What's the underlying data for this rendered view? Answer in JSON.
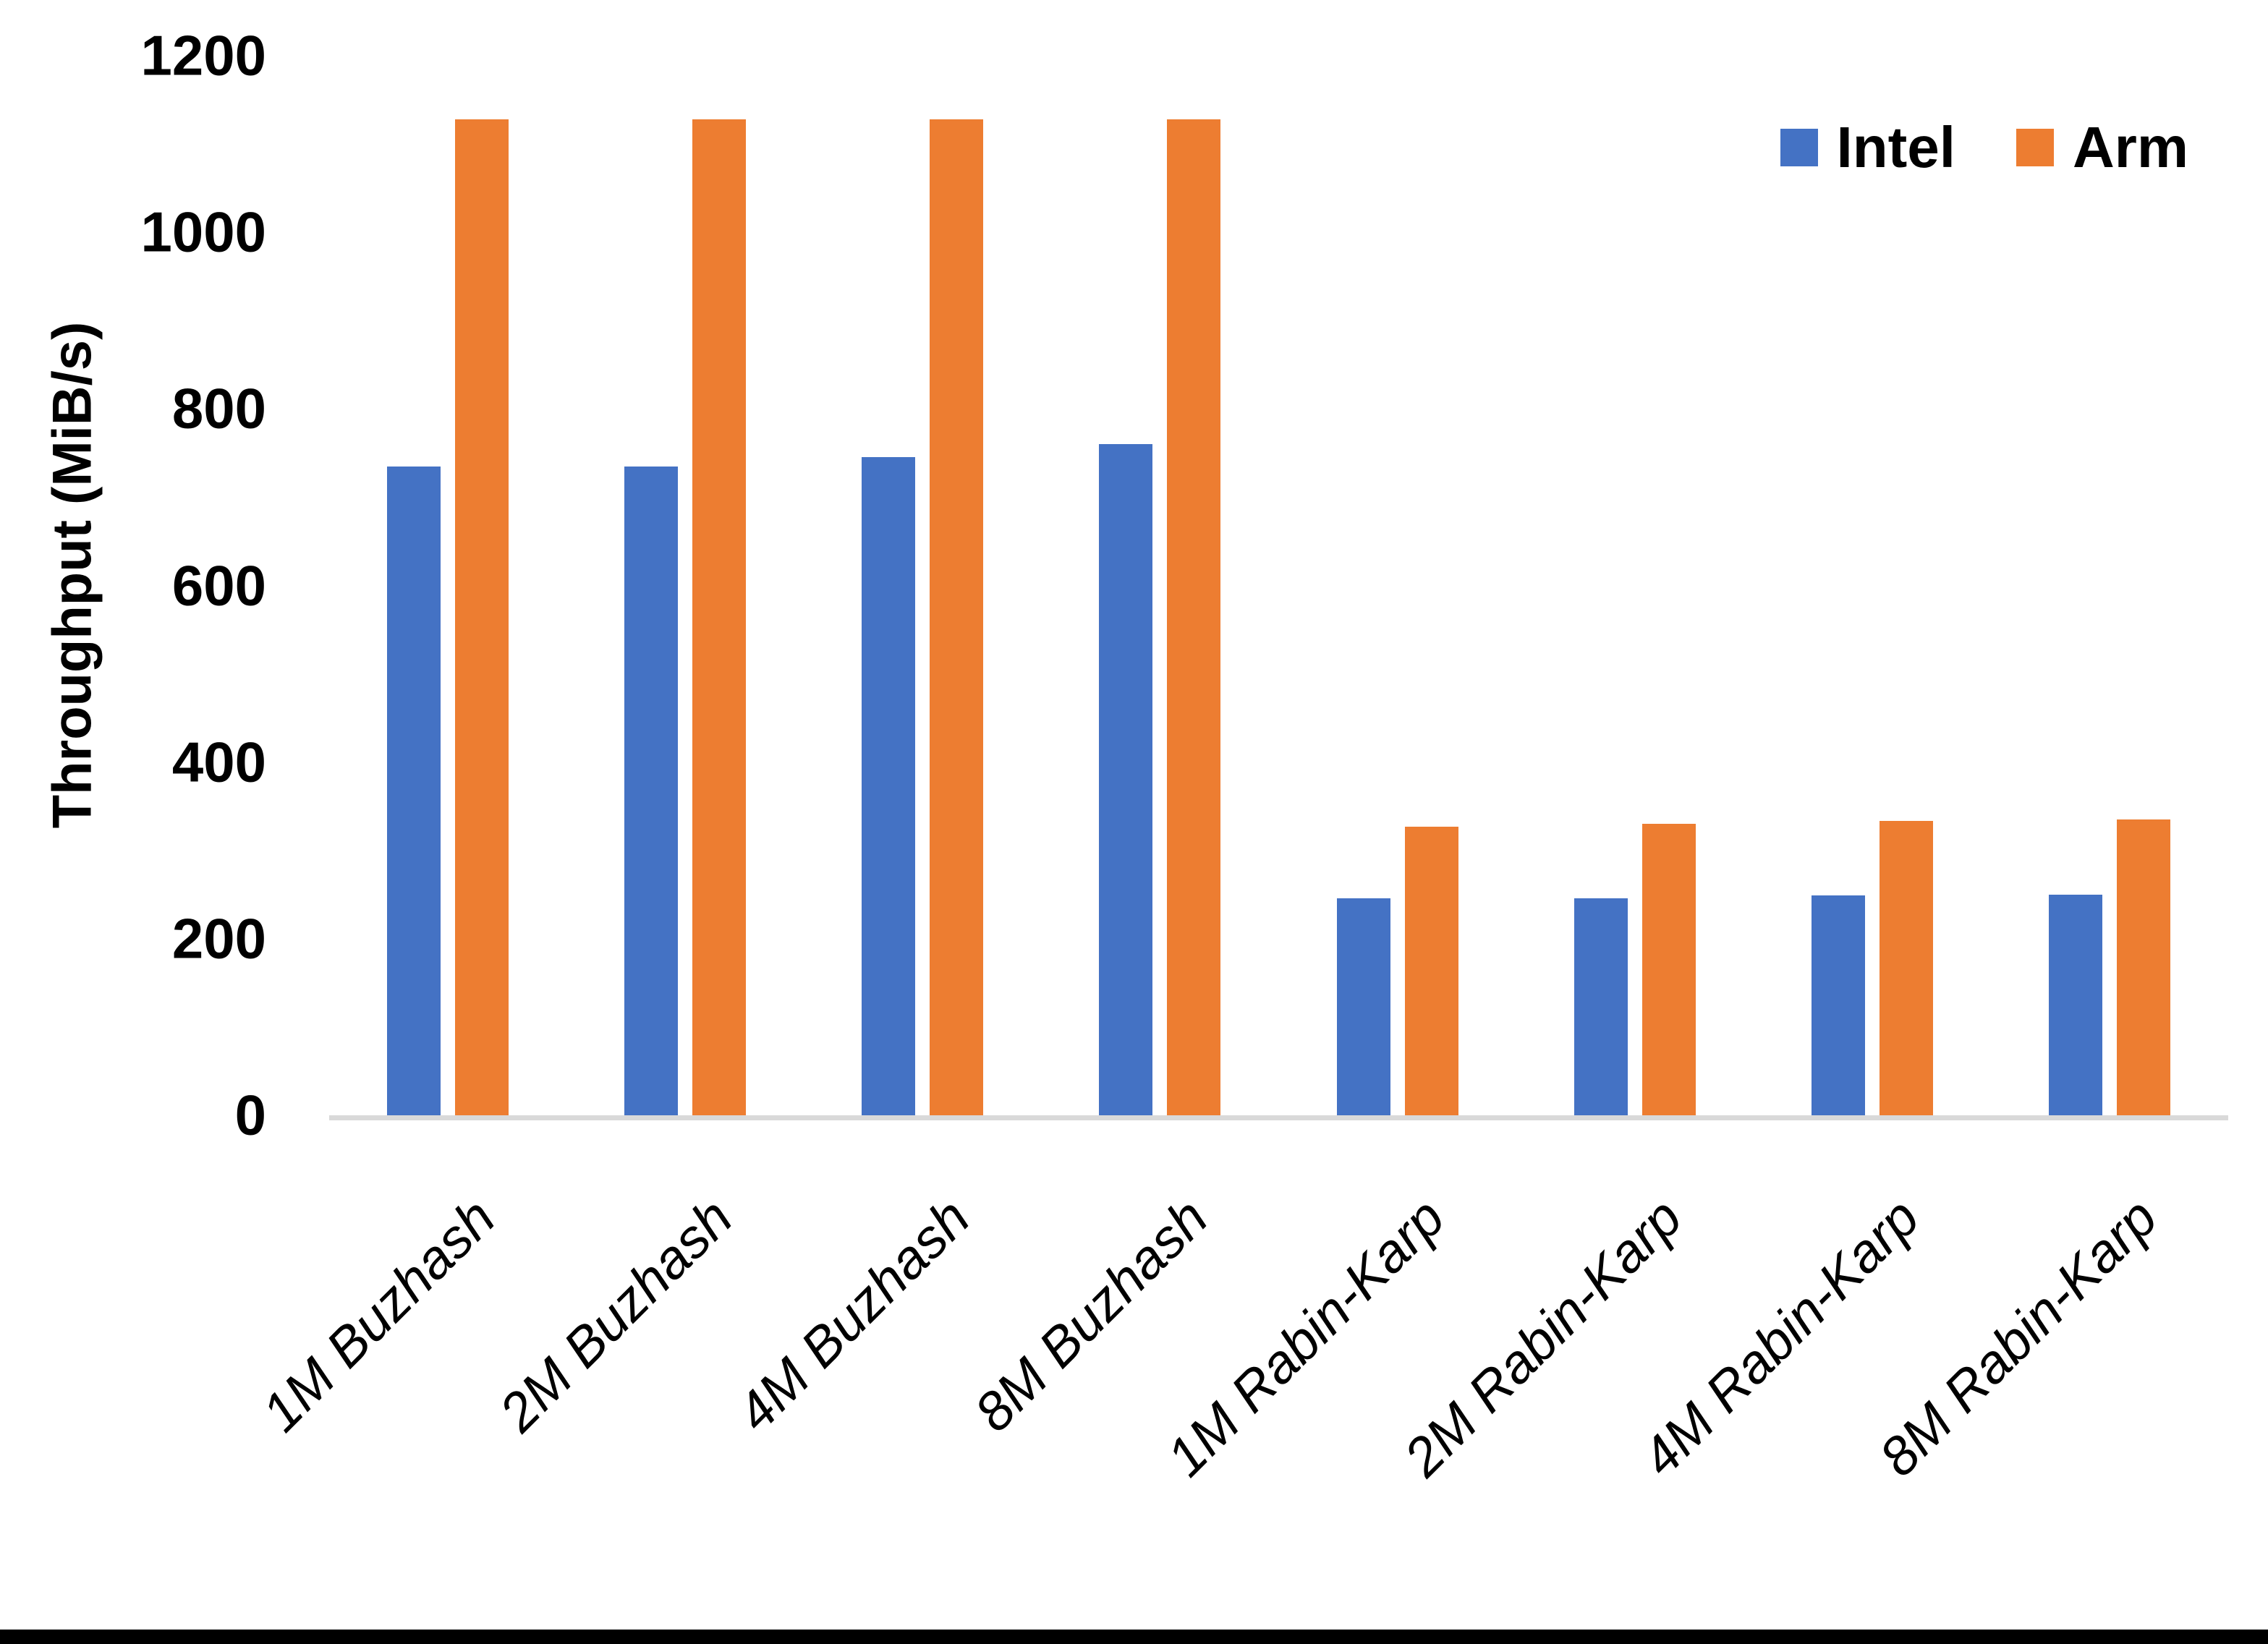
{
  "page": {
    "background": "#FFFFFF",
    "bottom_border_color": "#000000"
  },
  "chart_data": {
    "type": "bar",
    "title": "",
    "xlabel": "",
    "ylabel": "Throughput (MiB/s)",
    "categories": [
      "1M Buzhash",
      "2M Buzhash",
      "4M Buzhash",
      "8M Buzhash",
      "1M Rabin-Karp",
      "2M Rabin-Karp",
      "4M Rabin-Karp",
      "8M Rabin-Karp"
    ],
    "series": [
      {
        "name": "Intel",
        "color": "#4472C4",
        "values": [
          735,
          735,
          745,
          760,
          246,
          246,
          249,
          250
        ]
      },
      {
        "name": "Arm",
        "color": "#ED7D31",
        "values": [
          1128,
          1128,
          1128,
          1128,
          327,
          330,
          333,
          335
        ]
      }
    ],
    "ylim": [
      0,
      1200
    ],
    "ytick_step": 200,
    "ytick_labels": [
      "0",
      "200",
      "400",
      "600",
      "800",
      "1000",
      "1200"
    ],
    "grid": false,
    "legend_position": "top-right",
    "axis_line_color": "#D9D9D9",
    "text_color": "#000000"
  }
}
